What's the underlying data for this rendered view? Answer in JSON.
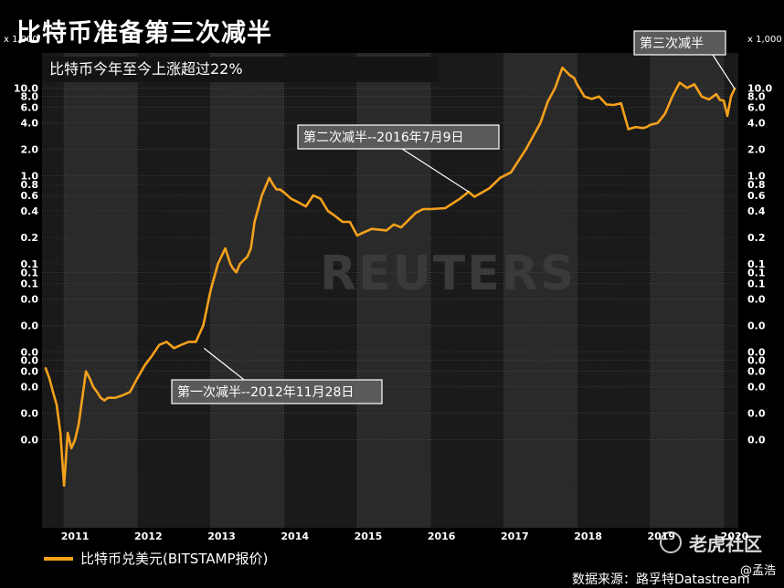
{
  "title": "比特币准备第三次减半",
  "subtitle": "比特币今年至今上涨超过22%",
  "unit_left": "x 1,000",
  "unit_right": "x 1,000",
  "legend_label": "比特币兑美元(BITSTAMP报价)",
  "source": "数据来源：路孚特Datastream",
  "credit": "@孟浩",
  "watermark": "老虎社区",
  "reuters_watermark": "REUTERS",
  "colors": {
    "series": "#f5a11c",
    "band_dark": "#1a1a1a",
    "band_light": "#2a2a2a"
  },
  "chart_data": {
    "type": "line",
    "title": "比特币准备第三次减半",
    "yscale": "log",
    "ylim": [
      0.0001,
      25
    ],
    "xlim": [
      2010.7,
      2020.2
    ],
    "x_tick_labels": [
      "2011",
      "2012",
      "2013",
      "2014",
      "2015",
      "2016",
      "2017",
      "2018",
      "2019",
      "2020"
    ],
    "y_ticks": [
      {
        "value": 10,
        "label": "10.0"
      },
      {
        "value": 8,
        "label": "8.0"
      },
      {
        "value": 6,
        "label": "6.0"
      },
      {
        "value": 4,
        "label": "4.0"
      },
      {
        "value": 2,
        "label": "2.0"
      },
      {
        "value": 1,
        "label": "1.0"
      },
      {
        "value": 0.8,
        "label": "0.8"
      },
      {
        "value": 0.6,
        "label": "0.6"
      },
      {
        "value": 0.4,
        "label": "0.4"
      },
      {
        "value": 0.2,
        "label": "0.2"
      },
      {
        "value": 0.1,
        "label": "0.1"
      },
      {
        "value": 0.08,
        "label": "0.1"
      },
      {
        "value": 0.06,
        "label": "0.1"
      },
      {
        "value": 0.04,
        "label": "0.0"
      },
      {
        "value": 0.02,
        "label": "0.0"
      },
      {
        "value": 0.01,
        "label": "0.0"
      },
      {
        "value": 0.008,
        "label": "0.0"
      },
      {
        "value": 0.006,
        "label": "0.0"
      },
      {
        "value": 0.004,
        "label": "0.0"
      },
      {
        "value": 0.002,
        "label": "0.0"
      },
      {
        "value": 0.001,
        "label": "0.0"
      }
    ],
    "series": [
      {
        "name": "比特币兑美元(BITSTAMP报价)",
        "x": [
          2010.75,
          2010.8,
          2010.85,
          2010.9,
          2010.95,
          2011.0,
          2011.05,
          2011.1,
          2011.15,
          2011.2,
          2011.25,
          2011.3,
          2011.35,
          2011.4,
          2011.45,
          2011.5,
          2011.55,
          2011.6,
          2011.7,
          2011.8,
          2011.9,
          2012.0,
          2012.1,
          2012.2,
          2012.3,
          2012.4,
          2012.5,
          2012.6,
          2012.7,
          2012.8,
          2012.9,
          2013.0,
          2013.1,
          2013.2,
          2013.27,
          2013.3,
          2013.35,
          2013.4,
          2013.45,
          2013.5,
          2013.55,
          2013.6,
          2013.7,
          2013.8,
          2013.85,
          2013.9,
          2013.95,
          2014.0,
          2014.1,
          2014.2,
          2014.3,
          2014.4,
          2014.5,
          2014.6,
          2014.7,
          2014.8,
          2014.9,
          2015.0,
          2015.05,
          2015.2,
          2015.4,
          2015.5,
          2015.6,
          2015.8,
          2015.9,
          2016.0,
          2016.2,
          2016.4,
          2016.52,
          2016.6,
          2016.8,
          2016.95,
          2017.1,
          2017.3,
          2017.5,
          2017.6,
          2017.7,
          2017.8,
          2017.9,
          2017.96,
          2018.0,
          2018.1,
          2018.2,
          2018.3,
          2018.4,
          2018.5,
          2018.6,
          2018.7,
          2018.8,
          2018.9,
          2018.95,
          2019.0,
          2019.1,
          2019.2,
          2019.3,
          2019.4,
          2019.5,
          2019.6,
          2019.7,
          2019.8,
          2019.9,
          2019.95,
          2020.0,
          2020.05,
          2020.1,
          2020.15
        ],
        "y": [
          0.0065,
          0.005,
          0.0035,
          0.0025,
          0.0012,
          0.0003,
          0.0012,
          0.0008,
          0.001,
          0.0015,
          0.003,
          0.006,
          0.005,
          0.004,
          0.0035,
          0.003,
          0.0028,
          0.003,
          0.003,
          0.0032,
          0.0035,
          0.005,
          0.007,
          0.009,
          0.012,
          0.013,
          0.011,
          0.012,
          0.013,
          0.013,
          0.02,
          0.05,
          0.1,
          0.15,
          0.1,
          0.09,
          0.08,
          0.1,
          0.11,
          0.12,
          0.15,
          0.3,
          0.6,
          0.95,
          0.8,
          0.7,
          0.7,
          0.65,
          0.55,
          0.5,
          0.45,
          0.6,
          0.55,
          0.4,
          0.35,
          0.3,
          0.3,
          0.21,
          0.22,
          0.25,
          0.24,
          0.28,
          0.26,
          0.38,
          0.42,
          0.42,
          0.43,
          0.55,
          0.66,
          0.58,
          0.72,
          0.95,
          1.1,
          2.0,
          4.0,
          7.0,
          10.0,
          17.0,
          14.0,
          13.0,
          11.0,
          8.0,
          7.5,
          8.0,
          6.5,
          6.4,
          6.7,
          3.4,
          3.6,
          3.5,
          3.6,
          3.8,
          4.0,
          5.1,
          8.0,
          11.5,
          10.0,
          11.0,
          8.0,
          7.4,
          8.5,
          7.3,
          7.2,
          4.8,
          8.0,
          9.8
        ]
      }
    ],
    "annotations": [
      {
        "label": "第一次减半--2012年11月28日",
        "x": 2012.91,
        "y": 0.011
      },
      {
        "label": "第二次减半--2016年7月9日",
        "x": 2016.52,
        "y": 0.66
      },
      {
        "label": "第三次减半",
        "x": 2020.15,
        "y": 9.8
      }
    ]
  }
}
